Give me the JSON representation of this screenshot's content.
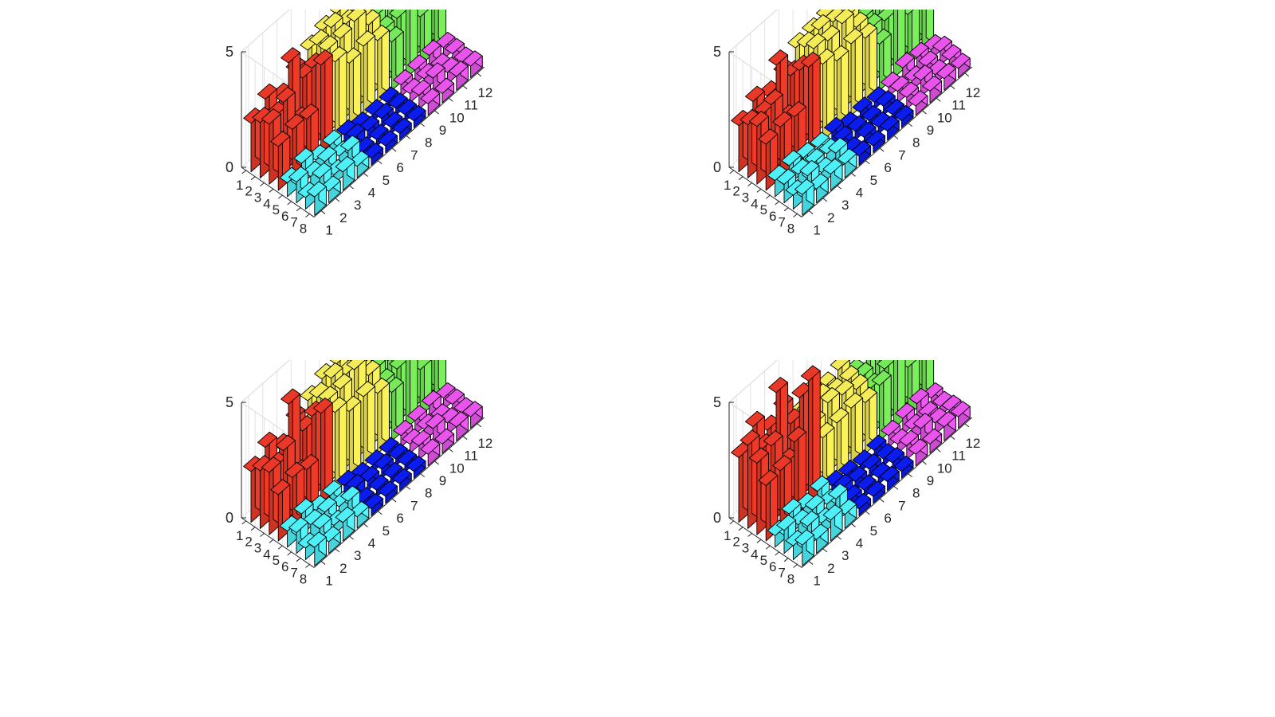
{
  "figure": {
    "layout": "2x2",
    "background": "#ffffff"
  },
  "chart_data": [
    {
      "type": "bar3",
      "panel": "top-left",
      "x_ticks": [
        "1",
        "2",
        "3",
        "4",
        "5",
        "6",
        "7",
        "8",
        "9",
        "10",
        "11",
        "12"
      ],
      "y_ticks": [
        "1",
        "2",
        "3",
        "4",
        "5",
        "6",
        "7",
        "8"
      ],
      "z_ticks": [
        "0",
        "5"
      ],
      "zlim": [
        0,
        5
      ],
      "grid": true,
      "group_colors": [
        "#f03a28",
        "#fbf25a",
        "#79f05a",
        "#50f7ff",
        "#0a1df5",
        "#f058f3"
      ],
      "heights": [
        [
          2.1,
          2.6,
          2.1,
          2.7,
          3.1,
          3.4,
          3.6,
          3.6,
          2.7,
          3.0,
          3.3,
          4.0
        ],
        [
          2.4,
          2.1,
          3.9,
          2.7,
          3.6,
          3.8,
          3.4,
          3.3,
          2.6,
          2.5,
          2.1,
          3.2
        ],
        [
          2.6,
          3.0,
          1.6,
          3.4,
          3.6,
          3.6,
          3.8,
          3.1,
          2.3,
          2.3,
          3.2,
          2.5
        ],
        [
          1.9,
          2.1,
          2.0,
          3.8,
          3.4,
          2.8,
          3.0,
          2.7,
          2.1,
          3.1,
          2.1,
          2.4
        ],
        [
          0.6,
          0.9,
          0.5,
          0.6,
          0.5,
          0.3,
          0.3,
          0.3,
          0.5,
          0.6,
          0.7,
          0.5
        ],
        [
          0.9,
          0.6,
          0.7,
          0.4,
          0.6,
          0.4,
          0.4,
          0.3,
          0.4,
          0.5,
          0.4,
          0.5
        ],
        [
          0.5,
          0.8,
          0.4,
          0.9,
          0.3,
          0.3,
          0.3,
          0.3,
          0.6,
          0.8,
          0.5,
          0.4
        ],
        [
          0.8,
          0.5,
          0.8,
          0.5,
          0.3,
          0.3,
          0.3,
          0.3,
          0.5,
          0.4,
          0.6,
          0.5
        ]
      ]
    },
    {
      "type": "bar3",
      "panel": "top-right",
      "x_ticks": [
        "1",
        "2",
        "3",
        "4",
        "5",
        "6",
        "7",
        "8",
        "9",
        "10",
        "11",
        "12"
      ],
      "y_ticks": [
        "1",
        "2",
        "3",
        "4",
        "5",
        "6",
        "7",
        "8"
      ],
      "z_ticks": [
        "0",
        "5"
      ],
      "zlim": [
        0,
        5
      ],
      "grid": true,
      "group_colors": [
        "#f03a28",
        "#fbf25a",
        "#79f05a",
        "#50f7ff",
        "#0a1df5",
        "#f058f3"
      ],
      "heights": [
        [
          2.0,
          2.5,
          2.2,
          2.6,
          3.2,
          3.3,
          3.4,
          3.7,
          2.6,
          2.9,
          3.2,
          3.9
        ],
        [
          2.3,
          2.2,
          3.8,
          2.8,
          3.5,
          3.7,
          3.5,
          3.2,
          2.5,
          2.6,
          2.2,
          3.1
        ],
        [
          2.5,
          2.9,
          1.7,
          3.3,
          3.7,
          3.5,
          3.7,
          3.0,
          2.4,
          2.2,
          3.1,
          2.6
        ],
        [
          2.0,
          2.2,
          2.1,
          3.7,
          3.3,
          2.9,
          3.1,
          2.8,
          2.0,
          3.0,
          2.2,
          2.3
        ],
        [
          0.7,
          0.8,
          0.6,
          0.5,
          0.6,
          0.3,
          0.4,
          0.3,
          0.4,
          0.7,
          0.6,
          0.4
        ],
        [
          0.8,
          0.7,
          0.6,
          0.5,
          0.5,
          0.4,
          0.3,
          0.4,
          0.5,
          0.4,
          0.5,
          0.6
        ],
        [
          0.6,
          0.9,
          0.5,
          0.8,
          0.3,
          0.4,
          0.3,
          0.3,
          0.5,
          0.7,
          0.4,
          0.5
        ],
        [
          0.9,
          0.6,
          0.7,
          0.6,
          0.4,
          0.3,
          0.4,
          0.3,
          0.4,
          0.5,
          0.5,
          0.4
        ]
      ]
    },
    {
      "type": "bar3",
      "panel": "bottom-left",
      "x_ticks": [
        "1",
        "2",
        "3",
        "4",
        "5",
        "6",
        "7",
        "8",
        "9",
        "10",
        "11",
        "12"
      ],
      "y_ticks": [
        "1",
        "2",
        "3",
        "4",
        "5",
        "6",
        "7",
        "8"
      ],
      "z_ticks": [
        "0",
        "5"
      ],
      "zlim": [
        0,
        5
      ],
      "grid": true,
      "group_colors": [
        "#f03a28",
        "#fbf25a",
        "#79f05a",
        "#50f7ff",
        "#0a1df5",
        "#f058f3"
      ],
      "heights": [
        [
          2.2,
          2.7,
          2.1,
          2.8,
          3.1,
          3.5,
          3.6,
          3.5,
          2.4,
          2.8,
          3.3,
          4.4
        ],
        [
          2.5,
          2.1,
          4.3,
          2.6,
          3.5,
          3.8,
          3.4,
          3.2,
          2.5,
          2.4,
          2.2,
          3.6
        ],
        [
          2.7,
          3.1,
          1.5,
          3.5,
          3.6,
          3.6,
          3.9,
          3.1,
          2.2,
          2.3,
          3.1,
          2.6
        ],
        [
          2.0,
          2.2,
          2.0,
          3.9,
          3.4,
          2.9,
          3.0,
          2.6,
          2.1,
          3.0,
          2.0,
          2.4
        ],
        [
          0.7,
          0.9,
          0.5,
          0.6,
          0.5,
          0.3,
          0.3,
          0.3,
          0.5,
          0.6,
          0.7,
          0.5
        ],
        [
          0.9,
          0.7,
          0.7,
          0.4,
          0.6,
          0.4,
          0.4,
          0.3,
          0.4,
          0.5,
          0.4,
          0.5
        ],
        [
          0.5,
          0.8,
          0.4,
          0.9,
          0.3,
          0.3,
          0.3,
          0.3,
          0.6,
          0.8,
          0.5,
          0.4
        ],
        [
          0.8,
          0.5,
          0.8,
          0.5,
          0.3,
          0.3,
          0.3,
          0.3,
          0.5,
          0.4,
          0.6,
          0.5
        ]
      ]
    },
    {
      "type": "bar3",
      "panel": "bottom-right",
      "x_ticks": [
        "1",
        "2",
        "3",
        "4",
        "5",
        "6",
        "7",
        "8",
        "9",
        "10",
        "11",
        "12"
      ],
      "y_ticks": [
        "1",
        "2",
        "3",
        "4",
        "5",
        "6",
        "7",
        "8"
      ],
      "z_ticks": [
        "0",
        "5"
      ],
      "zlim": [
        0,
        5
      ],
      "grid": true,
      "group_colors": [
        "#f03a28",
        "#fbf25a",
        "#79f05a",
        "#50f7ff",
        "#0a1df5",
        "#f058f3"
      ],
      "heights": [
        [
          2.8,
          3.6,
          2.9,
          3.3,
          2.4,
          2.9,
          2.6,
          2.8,
          2.1,
          2.6,
          3.4,
          4.6
        ],
        [
          3.6,
          2.9,
          4.8,
          2.9,
          2.8,
          2.9,
          2.6,
          2.6,
          2.2,
          2.5,
          2.3,
          4.2
        ],
        [
          3.1,
          3.3,
          2.0,
          4.3,
          2.6,
          3.0,
          2.8,
          2.5,
          2.0,
          2.3,
          3.3,
          3.6
        ],
        [
          2.4,
          2.5,
          3.2,
          5.3,
          2.3,
          2.4,
          2.5,
          2.2,
          2.4,
          3.1,
          2.1,
          2.6
        ],
        [
          0.5,
          0.9,
          0.6,
          0.8,
          0.5,
          0.4,
          0.3,
          0.4,
          0.5,
          0.7,
          0.8,
          0.5
        ],
        [
          1.0,
          0.7,
          0.8,
          0.5,
          0.6,
          0.4,
          0.4,
          0.3,
          0.4,
          0.5,
          0.5,
          0.4
        ],
        [
          0.6,
          0.9,
          0.5,
          1.0,
          0.4,
          0.3,
          0.3,
          0.4,
          0.6,
          0.8,
          0.5,
          0.5
        ],
        [
          0.9,
          0.6,
          0.9,
          0.6,
          0.3,
          0.3,
          0.4,
          0.3,
          0.5,
          0.4,
          0.6,
          0.5
        ]
      ]
    }
  ]
}
